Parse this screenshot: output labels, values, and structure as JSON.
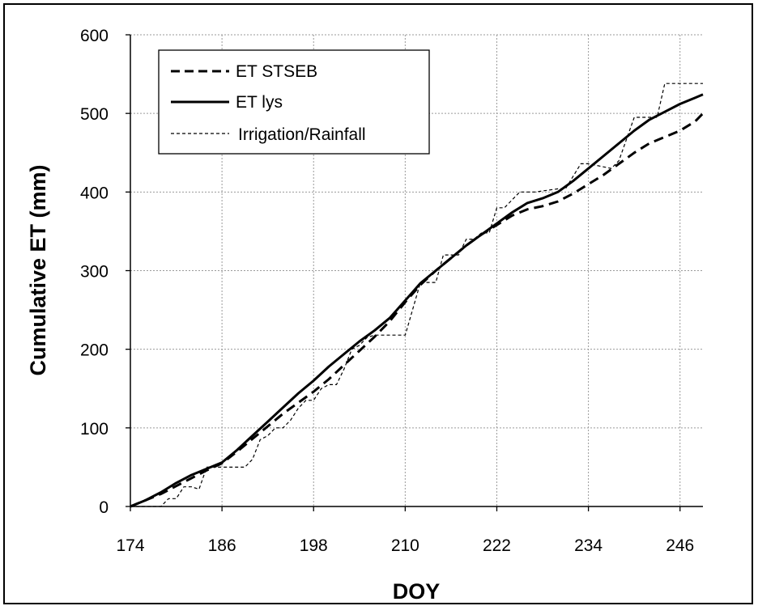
{
  "chart_data": {
    "type": "line",
    "xlabel": "DOY",
    "ylabel": "Cumulative ET (mm)",
    "xlim": [
      174,
      249
    ],
    "ylim": [
      0,
      600
    ],
    "xticks": [
      174,
      186,
      198,
      210,
      222,
      234,
      246
    ],
    "yticks": [
      0,
      100,
      200,
      300,
      400,
      500,
      600
    ],
    "grid": true,
    "legend_position": "top-left",
    "series": [
      {
        "name": "ET STSEB",
        "style": "dashed",
        "color": "#000000",
        "x": [
          174,
          176,
          178,
          180,
          182,
          184,
          186,
          188,
          190,
          192,
          194,
          196,
          198,
          200,
          202,
          204,
          206,
          208,
          210,
          212,
          214,
          216,
          218,
          220,
          222,
          224,
          226,
          228,
          230,
          232,
          234,
          236,
          238,
          240,
          242,
          244,
          246,
          248,
          249
        ],
        "y": [
          0,
          8,
          16,
          26,
          36,
          46,
          55,
          70,
          86,
          102,
          118,
          132,
          146,
          162,
          180,
          198,
          216,
          236,
          260,
          282,
          300,
          316,
          332,
          346,
          358,
          370,
          378,
          382,
          388,
          398,
          410,
          422,
          436,
          450,
          462,
          470,
          478,
          490,
          500
        ]
      },
      {
        "name": "ET lys",
        "style": "solid",
        "color": "#000000",
        "x": [
          174,
          176,
          178,
          180,
          182,
          184,
          186,
          188,
          190,
          192,
          194,
          196,
          198,
          200,
          202,
          204,
          206,
          208,
          210,
          212,
          214,
          216,
          218,
          220,
          222,
          224,
          226,
          228,
          230,
          232,
          234,
          236,
          238,
          240,
          242,
          244,
          246,
          248,
          249
        ],
        "y": [
          0,
          8,
          18,
          30,
          40,
          48,
          56,
          72,
          90,
          108,
          126,
          144,
          160,
          178,
          194,
          210,
          224,
          240,
          262,
          284,
          300,
          316,
          332,
          346,
          360,
          374,
          386,
          392,
          400,
          414,
          430,
          446,
          462,
          478,
          492,
          502,
          512,
          520,
          524
        ]
      },
      {
        "name": "Irrigation/Rainfall",
        "style": "thin-dashed",
        "color": "#000000",
        "x": [
          174,
          177,
          178,
          179,
          180,
          181,
          181.5,
          182,
          183,
          184,
          185,
          185.5,
          186,
          189,
          190,
          191,
          192,
          193,
          194,
          195,
          196,
          197,
          198,
          199,
          200,
          201,
          202,
          203,
          204,
          205,
          206,
          209,
          210,
          212,
          213,
          214,
          215,
          216,
          217,
          218,
          219,
          220,
          221,
          222,
          223,
          225,
          226,
          227,
          230,
          231,
          232,
          233,
          234,
          237,
          238,
          240,
          241,
          243,
          244,
          245,
          249
        ],
        "y": [
          0,
          0,
          0,
          10,
          10,
          25,
          25,
          25,
          22,
          50,
          50,
          50,
          50,
          50,
          60,
          85,
          90,
          100,
          100,
          110,
          125,
          135,
          135,
          150,
          155,
          155,
          175,
          200,
          205,
          215,
          218,
          218,
          218,
          285,
          285,
          285,
          320,
          320,
          320,
          340,
          340,
          348,
          348,
          380,
          380,
          400,
          400,
          400,
          404,
          404,
          420,
          436,
          436,
          430,
          440,
          495,
          495,
          495,
          538,
          538,
          538
        ]
      }
    ]
  }
}
